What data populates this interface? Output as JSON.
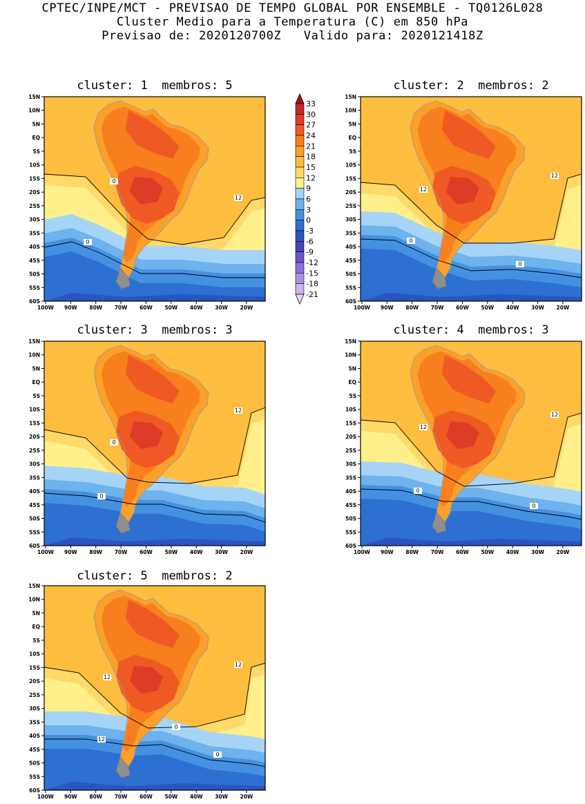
{
  "header": {
    "line1": "CPTEC/INPE/MCT - PREVISAO DE TEMPO GLOBAL POR ENSEMBLE - TQ0126L028",
    "line2": "Cluster Medio para a Temperatura (C) em 850 hPa",
    "line3": "Previsao de: 2020120700Z   Valido para: 2020121418Z"
  },
  "panels": [
    {
      "title": "cluster: 1  membros: 5",
      "contours": [
        "12",
        "0",
        "0"
      ]
    },
    {
      "title": "cluster: 2  membros: 2",
      "contours": [
        "12",
        "12",
        "0",
        "0"
      ]
    },
    {
      "title": "cluster: 3  membros: 3",
      "contours": [
        "12",
        "0",
        "0"
      ]
    },
    {
      "title": "cluster: 4  membros: 3",
      "contours": [
        "12",
        "12",
        "0",
        "0"
      ]
    },
    {
      "title": "cluster: 5  membros: 2",
      "contours": [
        "12",
        "12",
        "12",
        "0",
        "0"
      ]
    }
  ],
  "axes": {
    "lat_labels": [
      "15N",
      "10N",
      "5N",
      "EQ",
      "5S",
      "10S",
      "15S",
      "20S",
      "25S",
      "30S",
      "35S",
      "40S",
      "45S",
      "50S",
      "55S",
      "60S"
    ],
    "lon_labels": [
      "100W",
      "90W",
      "80W",
      "70W",
      "60W",
      "50W",
      "40W",
      "30W",
      "20W"
    ]
  },
  "colorbar": {
    "labels": [
      "33",
      "30",
      "27",
      "24",
      "21",
      "18",
      "15",
      "12",
      "9",
      "6",
      "3",
      "0",
      "-3",
      "-6",
      "-9",
      "-12",
      "-15",
      "-18",
      "-21"
    ],
    "colors": [
      "#a50f15",
      "#c8282a",
      "#de3c26",
      "#ef5a24",
      "#f77f1e",
      "#fba02a",
      "#fdbd3e",
      "#ffd96a",
      "#fff08c",
      "#a6d4f7",
      "#6eb2ee",
      "#4591e1",
      "#2e6fd2",
      "#2a55c0",
      "#4444b8",
      "#6a56c8",
      "#8c70d8",
      "#ac90e4",
      "#ccb4f0",
      "#e6d8fa"
    ]
  }
}
